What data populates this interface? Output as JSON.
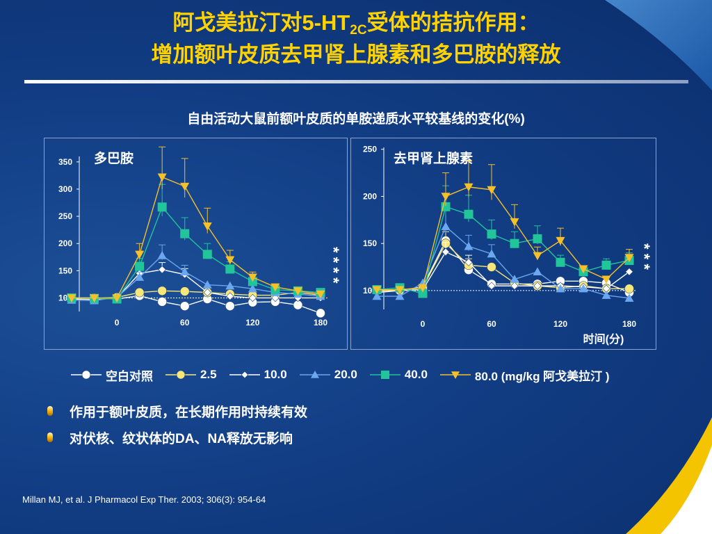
{
  "title": {
    "line1_a": "阿戈美拉汀对5-HT",
    "line1_sub": "2C",
    "line1_b": "受体的拮抗作用：",
    "line2": "增加额叶皮质去甲肾上腺素和多巴胺的释放"
  },
  "subtitle": "自由活动大鼠前额叶皮质的单胺递质水平较基线的变化(%)",
  "colors": {
    "title": "#ffd200",
    "background": "#123e85",
    "panel_border": "#8fa3c8"
  },
  "chart_data": [
    {
      "type": "line",
      "title": "多巴胺",
      "xticks": [
        "0",
        "60",
        "120",
        "180"
      ],
      "ylabels": [
        "100",
        "150",
        "200",
        "250",
        "300",
        "350"
      ],
      "ylim": [
        75,
        360
      ],
      "xlim": [
        -40,
        180
      ],
      "baseline": 100,
      "significance": "* * * *",
      "x": [
        -40,
        -20,
        0,
        20,
        40,
        60,
        80,
        100,
        120,
        140,
        160,
        180
      ],
      "series": [
        {
          "name": "空白对照",
          "marker": "circle",
          "color": "#ffffff",
          "values": [
            100,
            100,
            98,
            104,
            93,
            85,
            98,
            85,
            92,
            93,
            87,
            72
          ]
        },
        {
          "name": "2.5",
          "marker": "circle",
          "color": "#f7e77a",
          "values": [
            100,
            99,
            101,
            110,
            113,
            112,
            110,
            107,
            105,
            105,
            110,
            105
          ]
        },
        {
          "name": "10.0",
          "marker": "diamond",
          "color": "#ffffff",
          "values": [
            98,
            97,
            100,
            145,
            152,
            143,
            110,
            103,
            100,
            100,
            100,
            100
          ]
        },
        {
          "name": "20.0",
          "marker": "triangle",
          "color": "#6ba6f0",
          "values": [
            96,
            95,
            101,
            138,
            178,
            148,
            124,
            122,
            117,
            110,
            107,
            103
          ]
        },
        {
          "name": "40.0",
          "marker": "square",
          "color": "#22c49a",
          "values": [
            100,
            99,
            98,
            158,
            267,
            218,
            180,
            153,
            130,
            115,
            113,
            110
          ]
        },
        {
          "name": "80.0",
          "marker": "triangle-down",
          "color": "#f5c02a",
          "values": [
            100,
            100,
            100,
            180,
            322,
            305,
            232,
            170,
            138,
            120,
            113,
            107
          ]
        }
      ]
    },
    {
      "type": "line",
      "title": "去甲肾上腺素",
      "xlabel": "时间(分)",
      "xticks": [
        "0",
        "60",
        "120",
        "180"
      ],
      "ylabels": [
        "100",
        "150",
        "200",
        "250"
      ],
      "ylim": [
        80,
        252
      ],
      "xlim": [
        -40,
        180
      ],
      "baseline": 100,
      "significance": "* * *",
      "x": [
        -40,
        -20,
        0,
        20,
        40,
        60,
        80,
        100,
        120,
        140,
        160,
        180
      ],
      "series": [
        {
          "name": "空白对照",
          "marker": "circle",
          "color": "#ffffff",
          "values": [
            100,
            100,
            104,
            153,
            122,
            107,
            107,
            107,
            110,
            110,
            108,
            98
          ]
        },
        {
          "name": "2.5",
          "marker": "circle",
          "color": "#f7e77a",
          "values": [
            100,
            100,
            103,
            150,
            127,
            125,
            108,
            105,
            103,
            105,
            102,
            102
          ]
        },
        {
          "name": "10.0",
          "marker": "diamond",
          "color": "#ffffff",
          "values": [
            98,
            100,
            101,
            141,
            130,
            105,
            105,
            105,
            105,
            104,
            102,
            120
          ]
        },
        {
          "name": "20.0",
          "marker": "triangle",
          "color": "#6ba6f0",
          "values": [
            94,
            94,
            108,
            168,
            147,
            139,
            112,
            120,
            102,
            102,
            95,
            92
          ]
        },
        {
          "name": "40.0",
          "marker": "square",
          "color": "#22c49a",
          "values": [
            101,
            103,
            97,
            189,
            181,
            160,
            150,
            155,
            130,
            120,
            127,
            132
          ]
        },
        {
          "name": "80.0",
          "marker": "triangle-down",
          "color": "#f5c02a",
          "values": [
            101,
            101,
            103,
            200,
            210,
            207,
            173,
            137,
            153,
            123,
            112,
            135
          ]
        }
      ]
    }
  ],
  "legend": {
    "items": [
      {
        "label": "空白对照",
        "marker": "circle",
        "color": "#ffffff"
      },
      {
        "label": "2.5",
        "marker": "circle",
        "color": "#f7e77a"
      },
      {
        "label": "10.0",
        "marker": "diamond",
        "color": "#ffffff"
      },
      {
        "label": "20.0",
        "marker": "triangle",
        "color": "#6ba6f0"
      },
      {
        "label": "40.0",
        "marker": "square",
        "color": "#22c49a"
      },
      {
        "label": "80.0 (mg/kg 阿戈美拉汀 )",
        "marker": "triangle-down",
        "color": "#f5c02a"
      }
    ]
  },
  "bullets": [
    "作用于额叶皮质，在长期作用时持续有效",
    "对伏核、纹状体的DA、NA释放无影响"
  ],
  "reference": "Millan MJ, et al. J Pharmacol Exp Ther.  2003; 306(3): 954-64"
}
